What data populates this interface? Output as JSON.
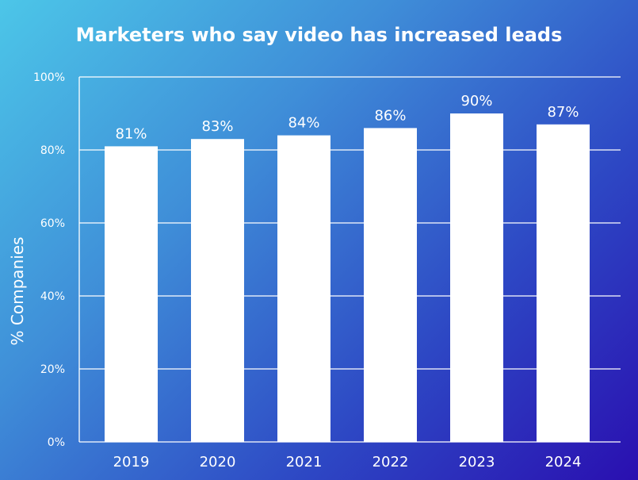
{
  "chart_data": {
    "type": "bar",
    "title": "Marketers who say video has increased leads",
    "xlabel": "",
    "ylabel": "% Companies",
    "categories": [
      "2019",
      "2020",
      "2021",
      "2022",
      "2023",
      "2024"
    ],
    "values": [
      81,
      83,
      84,
      86,
      90,
      87
    ],
    "data_labels": [
      "81%",
      "83%",
      "84%",
      "86%",
      "90%",
      "87%"
    ],
    "ylim": [
      0,
      100
    ],
    "yticks": [
      0,
      20,
      40,
      60,
      80,
      100
    ],
    "ytick_labels": [
      "0%",
      "20%",
      "40%",
      "60%",
      "80%",
      "100%"
    ],
    "grid": true,
    "legend": "none",
    "colors": {
      "bar": "#ffffff",
      "background_start": "#4cc6e8",
      "background_end": "#2a0fb0"
    }
  }
}
